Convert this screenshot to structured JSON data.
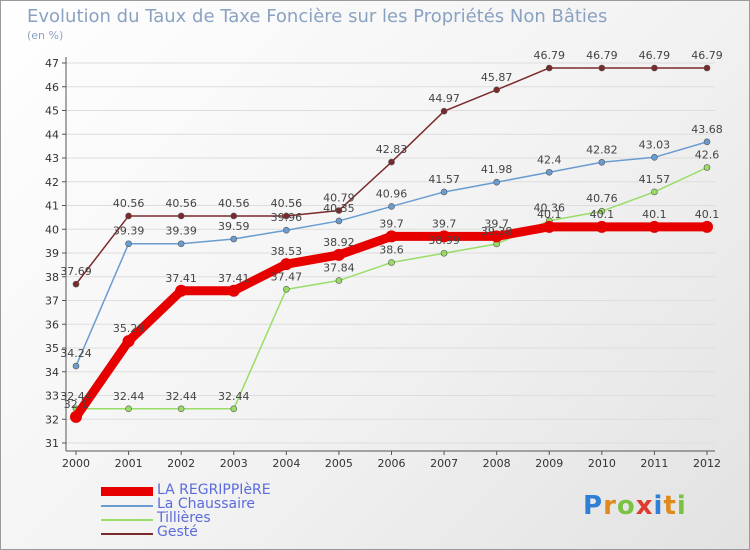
{
  "chart_data": {
    "type": "line",
    "title": "Evolution du Taux de Taxe Foncière sur les Propriétés Non Bâties",
    "ylabel": "(en %)",
    "xlabel": "",
    "categories": [
      "2000",
      "2001",
      "2002",
      "2003",
      "2004",
      "2005",
      "2006",
      "2007",
      "2008",
      "2009",
      "2010",
      "2011",
      "2012"
    ],
    "ylim": [
      31,
      47
    ],
    "yticks": [
      31,
      32,
      33,
      34,
      35,
      36,
      37,
      38,
      39,
      40,
      41,
      42,
      43,
      44,
      45,
      46,
      47
    ],
    "series": [
      {
        "name": "LA REGRIPPIèRE",
        "color": "#e60000",
        "values": [
          32.1,
          35.29,
          37.41,
          37.41,
          38.53,
          38.92,
          39.7,
          39.7,
          39.7,
          40.1,
          40.1,
          40.1,
          40.1
        ],
        "labels": [
          "32.1",
          "35.29",
          "37.41",
          "37.41",
          "38.53",
          "38.92",
          "39.7",
          "39.7",
          "39.7",
          "40.1",
          "40.1",
          "40.1",
          "40.1"
        ]
      },
      {
        "name": "La Chaussaire",
        "color": "#6a9cd0",
        "values": [
          34.24,
          39.39,
          39.39,
          39.59,
          39.96,
          40.35,
          40.96,
          41.57,
          41.98,
          42.4,
          42.82,
          43.03,
          43.68
        ],
        "labels": [
          "34.24",
          "39.39",
          "39.39",
          "39.59",
          "39.96",
          "40.35",
          "40.96",
          "41.57",
          "41.98",
          "42.4",
          "42.82",
          "43.03",
          "43.68"
        ]
      },
      {
        "name": "Tillières",
        "color": "#99dd66",
        "values": [
          32.44,
          32.44,
          32.44,
          32.44,
          37.47,
          37.84,
          38.6,
          38.99,
          39.38,
          40.36,
          40.76,
          41.57,
          42.6
        ],
        "labels": [
          "32.44",
          "32.44",
          "32.44",
          "32.44",
          "37.47",
          "37.84",
          "38.6",
          "38.99",
          "39.38",
          "40.36",
          "40.76",
          "41.57",
          "42.6"
        ]
      },
      {
        "name": "Gesté",
        "color": "#7a2a2a",
        "values": [
          37.69,
          40.56,
          40.56,
          40.56,
          40.56,
          40.79,
          42.83,
          44.97,
          45.87,
          46.79,
          46.79,
          46.79,
          46.79
        ],
        "labels": [
          "37.69",
          "40.56",
          "40.56",
          "40.56",
          "40.56",
          "40.79",
          "42.83",
          "44.97",
          "45.87",
          "46.79",
          "46.79",
          "46.79",
          "46.79"
        ]
      }
    ],
    "legend_position": "bottom-left"
  },
  "legend": [
    {
      "label": "LA REGRIPPIèRE",
      "color": "#e60000"
    },
    {
      "label": "La Chaussaire",
      "color": "#6a9cd0"
    },
    {
      "label": "Tillières",
      "color": "#99dd66"
    },
    {
      "label": "Gesté",
      "color": "#7a2a2a"
    }
  ],
  "logo": {
    "text": "Proxiti"
  }
}
